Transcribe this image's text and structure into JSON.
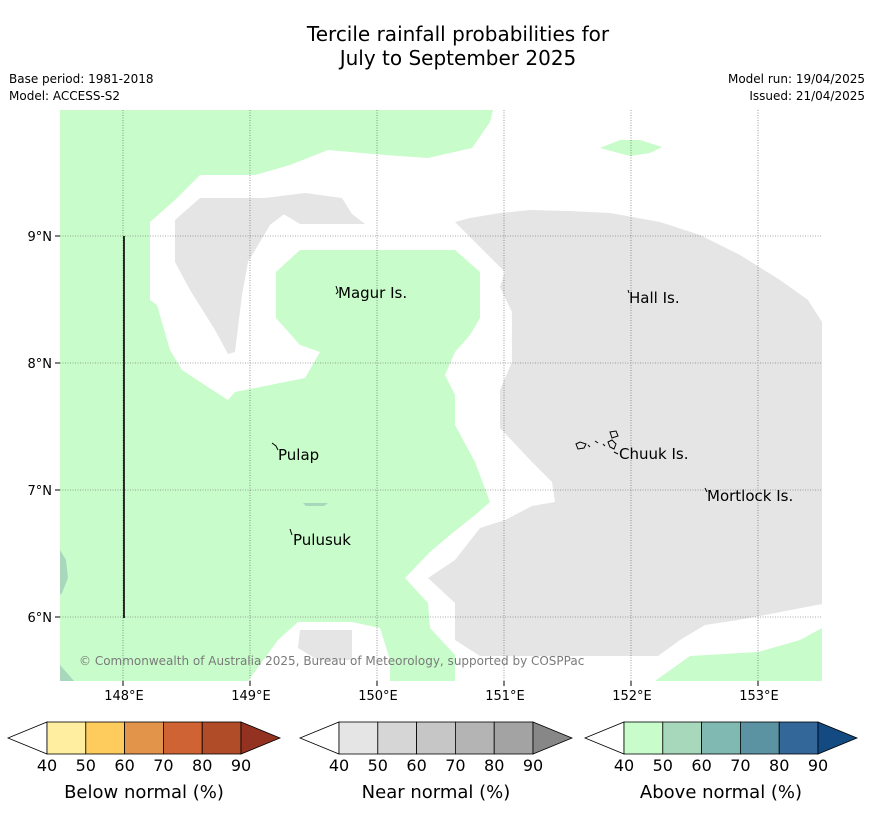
{
  "title_line1": "Tercile rainfall probabilities for",
  "title_line2": "July to September 2025",
  "base_period": "Base period: 1981-2018",
  "model": "Model: ACCESS-S2",
  "model_run": "Model run: 19/04/2025",
  "issued": "Issued: 21/04/2025",
  "copyright": "© Commonwealth of Australia 2025, Bureau of Meteorology, supported by COSPPac",
  "map": {
    "x_ticks": [
      "148°E",
      "149°E",
      "150°E",
      "151°E",
      "152°E",
      "153°E"
    ],
    "y_ticks": [
      "9°N",
      "8°N",
      "7°N",
      "6°N"
    ],
    "places": [
      "Magur Is.",
      "Hall Is.",
      "Pulap",
      "Chuuk Is.",
      "Mortlock Is.",
      "Pulusuk"
    ],
    "category_colors": {
      "near_normal_40_50": "#e5e5e5",
      "above_normal_40_50": "#c8fcca",
      "above_normal_50_60": "#a8d8bb"
    }
  },
  "colorbars": [
    {
      "title": "Below normal (%)",
      "ticks": [
        "40",
        "50",
        "60",
        "70",
        "80",
        "90"
      ],
      "colors": [
        "#ffeda0",
        "#fecc5c",
        "#e2944a",
        "#cf6333",
        "#b14c28",
        "#933220"
      ]
    },
    {
      "title": "Near normal (%)",
      "ticks": [
        "40",
        "50",
        "60",
        "70",
        "80",
        "90"
      ],
      "colors": [
        "#e5e5e5",
        "#d6d6d6",
        "#c6c6c6",
        "#b4b4b4",
        "#a3a3a3",
        "#878787"
      ]
    },
    {
      "title": "Above normal (%)",
      "ticks": [
        "40",
        "50",
        "60",
        "70",
        "80",
        "90"
      ],
      "colors": [
        "#c8fcca",
        "#a8d8bb",
        "#80b8b2",
        "#5c93a3",
        "#336699",
        "#134a82"
      ]
    }
  ]
}
